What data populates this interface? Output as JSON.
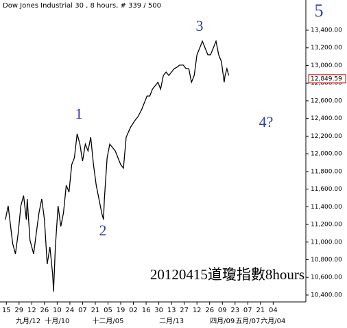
{
  "chart_data": {
    "type": "line",
    "title": "Dow Jones Industrial 30 , 8 hours, # 339 / 500",
    "annotations": [
      "1",
      "2",
      "3",
      "4?",
      "5",
      "20120415道瓊指數8hours"
    ],
    "x": [
      -1,
      2,
      7,
      10,
      13,
      16,
      19,
      22,
      23,
      26,
      30,
      33,
      36,
      39,
      42,
      45,
      48,
      51,
      52,
      54,
      57,
      60,
      63,
      66,
      69,
      72,
      75,
      78,
      81,
      84,
      87,
      90,
      93,
      96,
      99,
      102,
      105,
      107,
      108,
      111,
      114,
      117,
      120,
      123,
      126,
      129,
      132,
      137,
      142,
      145,
      149,
      152,
      155,
      158,
      161,
      164,
      167,
      170,
      173,
      176,
      179,
      182,
      185,
      188,
      191,
      195,
      198,
      201,
      204,
      207,
      210,
      213,
      216,
      219,
      222,
      225,
      228,
      231,
      234,
      237,
      240,
      241,
      243,
      245
    ],
    "series": [
      {
        "name": "Dow Jones Industrial 30",
        "color": "#000000",
        "values": [
          11255,
          11410,
          10983,
          10866,
          11100,
          11410,
          11527,
          11255,
          11488,
          11022,
          10866,
          11100,
          11333,
          11488,
          11255,
          10750,
          10944,
          10633,
          10439,
          10944,
          11410,
          11177,
          11333,
          11644,
          11566,
          11877,
          11955,
          12227,
          12110,
          11916,
          12110,
          12032,
          12188,
          11877,
          11644,
          11488,
          11333,
          11255,
          11488,
          11955,
          12110,
          12071,
          12032,
          11955,
          11877,
          11838,
          12188,
          12304,
          12382,
          12421,
          12499,
          12576,
          12654,
          12654,
          12732,
          12771,
          12810,
          12732,
          12887,
          12926,
          12887,
          12926,
          12965,
          12981,
          13004,
          13004,
          12965,
          12965,
          12810,
          12887,
          13121,
          13198,
          13276,
          13198,
          13121,
          13121,
          13198,
          13276,
          13121,
          13043,
          12810,
          12887,
          12965,
          12887
        ]
      }
    ],
    "last_price": {
      "value": 12849.59,
      "label": "12,849.59"
    },
    "xlim": [
      -7,
      330
    ],
    "xticks": [
      {
        "value": 0,
        "label": "15"
      },
      {
        "value": 14,
        "label": "29"
      },
      {
        "value": 28,
        "label": "12"
      },
      {
        "value": 42,
        "label": "26"
      },
      {
        "value": 56,
        "label": "10"
      },
      {
        "value": 70,
        "label": "24"
      },
      {
        "value": 84,
        "label": "07"
      },
      {
        "value": 98,
        "label": "21"
      },
      {
        "value": 112,
        "label": "05"
      },
      {
        "value": 126,
        "label": "19"
      },
      {
        "value": 140,
        "label": "02"
      },
      {
        "value": 154,
        "label": "16"
      },
      {
        "value": 168,
        "label": "30"
      },
      {
        "value": 182,
        "label": "13"
      },
      {
        "value": 196,
        "label": "27"
      },
      {
        "value": 210,
        "label": "12"
      },
      {
        "value": 224,
        "label": "26"
      },
      {
        "value": 238,
        "label": "09"
      },
      {
        "value": 252,
        "label": "23"
      },
      {
        "value": 266,
        "label": "07"
      },
      {
        "value": 280,
        "label": "21"
      },
      {
        "value": 294,
        "label": "04"
      }
    ],
    "xticks2": [
      {
        "value": 24,
        "label": "九月/12"
      },
      {
        "value": 56,
        "label": "十月/10"
      },
      {
        "value": 112,
        "label": "十二月/05"
      },
      {
        "value": 182,
        "label": "二月/13"
      },
      {
        "value": 238,
        "label": "四月/09"
      },
      {
        "value": 266,
        "label": "五月/07"
      },
      {
        "value": 294,
        "label": "六月/04"
      }
    ],
    "ylim": [
      10322,
      13742
    ],
    "yticks": [
      {
        "value": 10400,
        "label": "10,400.00"
      },
      {
        "value": 10600,
        "label": "10,600.00"
      },
      {
        "value": 10800,
        "label": "10,800.00"
      },
      {
        "value": 11000,
        "label": "11,000.00"
      },
      {
        "value": 11200,
        "label": "11,200.00"
      },
      {
        "value": 11400,
        "label": "11,400.00"
      },
      {
        "value": 11600,
        "label": "11,600.00"
      },
      {
        "value": 11800,
        "label": "11,800.00"
      },
      {
        "value": 12000,
        "label": "12,000.00"
      },
      {
        "value": 12200,
        "label": "12,200.00"
      },
      {
        "value": 12400,
        "label": "12,400.00"
      },
      {
        "value": 12600,
        "label": "12,600.00"
      },
      {
        "value": 12800,
        "label": "12,800.00"
      },
      {
        "value": 13000,
        "label": "13,000.00"
      },
      {
        "value": 13200,
        "label": "13,200.00"
      },
      {
        "value": 13400,
        "label": "13,400.00"
      }
    ]
  }
}
